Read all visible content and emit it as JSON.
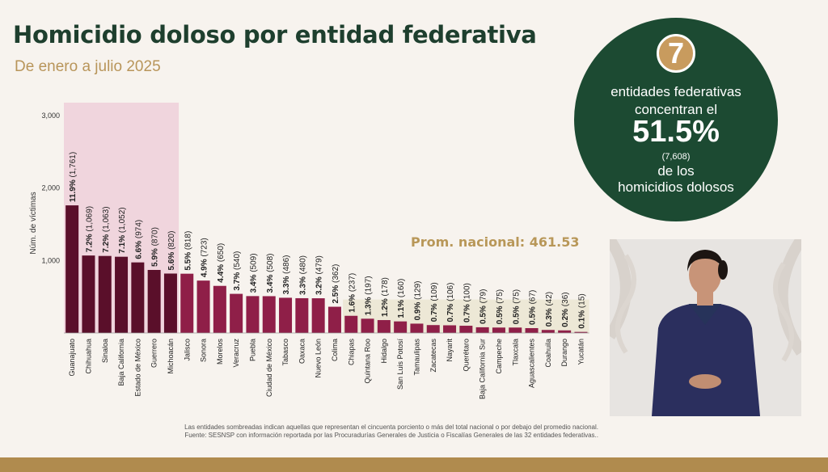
{
  "header": {
    "title": "Homicidio doloso por entidad federativa",
    "subtitle": "De enero a julio 2025"
  },
  "summary": {
    "count": "7",
    "line1": "entidades federativas",
    "line2": "concentran el",
    "percent": "51.5%",
    "victims": "(7,608)",
    "line3": "de los",
    "line4": "homicidios dolosos"
  },
  "national_avg": {
    "label": "Prom. nacional: 461.53",
    "value": 461.53
  },
  "notes": {
    "line1": "Las entidades sombreadas indican aquellas que representan el cincuenta porciento o más del total nacional o por debajo del promedio nacional.",
    "line2": "Fuente: SESNSP con información reportada por las Procuradurías Generales de Justicia o Fiscalías Generales de las 32 entidades federativas.."
  },
  "colors": {
    "title": "#1e3f2e",
    "accent_gold": "#b8955a",
    "bar_top7": "#5a0f2a",
    "bar_rest": "#8f1f48",
    "highlight_top": "#f0d5dd",
    "highlight_below_avg": "#ede8d6",
    "circle_bg": "#1c4a32"
  },
  "chart_data": {
    "type": "bar",
    "ylabel": "Núm. de víctimas",
    "ylim": [
      0,
      3000
    ],
    "yticks": [
      "3,000",
      "2,000",
      "1,000"
    ],
    "ytick_values": [
      3000,
      2000,
      1000
    ],
    "grid": false,
    "categories": [
      "Guanajuato",
      "Chihuahua",
      "Sinaloa",
      "Baja California",
      "Estado de México",
      "Guerrero",
      "Michoacán",
      "Jalisco",
      "Sonora",
      "Morelos",
      "Veracruz",
      "Puebla",
      "Ciudad de México",
      "Tabasco",
      "Oaxaca",
      "Nuevo León",
      "Colima",
      "Chiapas",
      "Quintana Roo",
      "Hidalgo",
      "San Luis Potosí",
      "Tamaulipas",
      "Zacatecas",
      "Nayarit",
      "Querétaro",
      "Baja California Sur",
      "Campeche",
      "Tlaxcala",
      "Aguascalientes",
      "Coahuila",
      "Durango",
      "Yucatán"
    ],
    "values": [
      1761,
      1069,
      1063,
      1052,
      974,
      870,
      820,
      818,
      723,
      650,
      540,
      509,
      508,
      486,
      480,
      479,
      362,
      237,
      197,
      178,
      160,
      129,
      109,
      106,
      100,
      79,
      75,
      75,
      67,
      42,
      36,
      15
    ],
    "pct_labels": [
      "11.9%",
      "7.2%",
      "7.2%",
      "7.1%",
      "6.6%",
      "5.9%",
      "5.6%",
      "5.5%",
      "4.9%",
      "4.4%",
      "3.7%",
      "3.4%",
      "3.4%",
      "3.3%",
      "3.3%",
      "3.2%",
      "2.5%",
      "1.6%",
      "1.3%",
      "1.2%",
      "1.1%",
      "0.9%",
      "0.7%",
      "0.7%",
      "0.7%",
      "0.5%",
      "0.5%",
      "0.5%",
      "0.5%",
      "0.3%",
      "0.2%",
      "0.1%"
    ],
    "count_labels": [
      "(1,761)",
      "(1,069)",
      "(1,063)",
      "(1,052)",
      "(974)",
      "(870)",
      "(820)",
      "(818)",
      "(723)",
      "(650)",
      "(540)",
      "(509)",
      "(508)",
      "(486)",
      "(480)",
      "(479)",
      "(362)",
      "(237)",
      "(197)",
      "(178)",
      "(160)",
      "(129)",
      "(109)",
      "(106)",
      "(100)",
      "(79)",
      "(75)",
      "(75)",
      "(67)",
      "(42)",
      "(36)",
      "(15)"
    ],
    "highlight_top_count": 7,
    "highlight_below_avg_from_index": 17
  }
}
